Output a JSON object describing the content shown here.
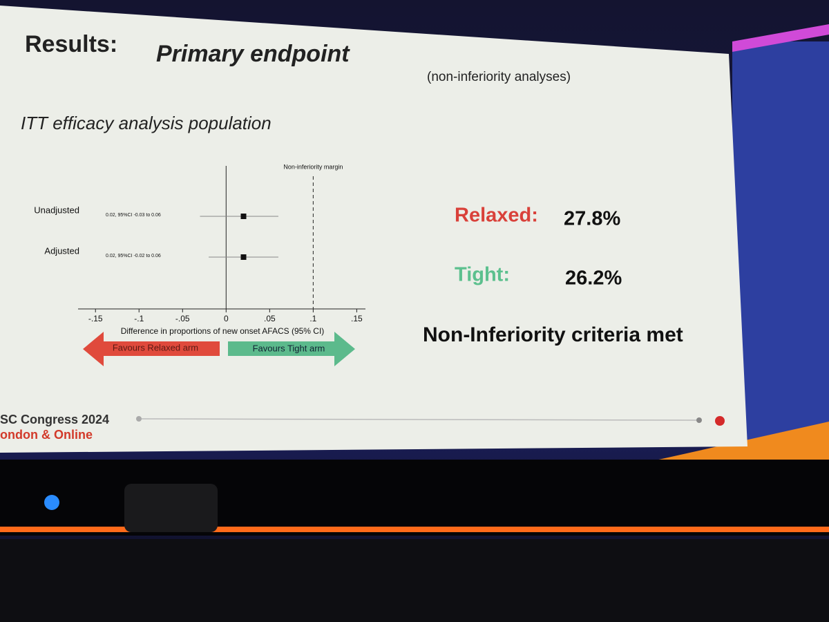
{
  "slide": {
    "title": "Results:",
    "subtitle": "Primary endpoint",
    "note": "(non-inferiority analyses)",
    "population": "ITT efficacy analysis population",
    "results": [
      {
        "label": "Relaxed:",
        "value": "27.8%"
      },
      {
        "label": "Tight:",
        "value": "26.2%"
      }
    ],
    "conclusion": "Non-Inferiority criteria met",
    "footer": [
      "SC Congress 2024",
      "ondon & Online"
    ]
  },
  "chart_data": {
    "type": "forest",
    "categories": [
      "Unadjusted",
      "Adjusted"
    ],
    "values": [
      0.02,
      0.02
    ],
    "ci_low": [
      -0.03,
      -0.02
    ],
    "ci_high": [
      0.06,
      0.06
    ],
    "value_labels": [
      "0.02, 95%CI -0.03 to 0.06",
      "0.02, 95%CI -0.02 to 0.06"
    ],
    "xlabel": "Difference in proportions of new onset AFACS (95% CI)",
    "xlim": [
      -0.17,
      0.16
    ],
    "xticks": [
      {
        "value": -0.15,
        "label": "-.15"
      },
      {
        "value": -0.1,
        "label": "-.1"
      },
      {
        "value": -0.05,
        "label": "-.05"
      },
      0,
      {
        "value": 0.05,
        "label": ".05"
      },
      {
        "value": 0.1,
        "label": ".1"
      },
      {
        "value": 0.15,
        "label": ".15"
      }
    ],
    "margin": {
      "value": 0.1,
      "label": "Non-inferiority margin"
    },
    "arrows": {
      "left": "Favours Relaxed arm",
      "right": "Favours Tight arm"
    },
    "color": "#111111"
  }
}
